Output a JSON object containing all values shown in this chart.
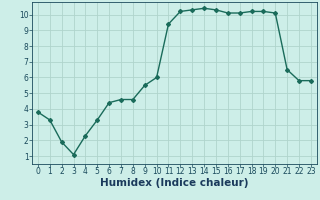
{
  "x": [
    0,
    1,
    2,
    3,
    4,
    5,
    6,
    7,
    8,
    9,
    10,
    11,
    12,
    13,
    14,
    15,
    16,
    17,
    18,
    19,
    20,
    21,
    22,
    23
  ],
  "y": [
    3.8,
    3.3,
    1.9,
    1.1,
    2.3,
    3.3,
    4.4,
    4.6,
    4.6,
    5.5,
    6.0,
    9.4,
    10.2,
    10.3,
    10.4,
    10.3,
    10.1,
    10.1,
    10.2,
    10.2,
    10.1,
    6.5,
    5.8,
    5.8
  ],
  "line_color": "#1a6b5a",
  "marker": "D",
  "marker_size": 2.0,
  "linewidth": 1.0,
  "bg_color": "#cdeee8",
  "grid_color": "#b0d4cc",
  "xlabel": "Humidex (Indice chaleur)",
  "xlabel_color": "#1a3a5c",
  "xlim": [
    -0.5,
    23.5
  ],
  "ylim": [
    0.5,
    10.8
  ],
  "yticks": [
    1,
    2,
    3,
    4,
    5,
    6,
    7,
    8,
    9,
    10
  ],
  "xticks": [
    0,
    1,
    2,
    3,
    4,
    5,
    6,
    7,
    8,
    9,
    10,
    11,
    12,
    13,
    14,
    15,
    16,
    17,
    18,
    19,
    20,
    21,
    22,
    23
  ],
  "tick_color": "#1a4a5c",
  "tick_fontsize": 5.5,
  "xlabel_fontsize": 7.5,
  "xlabel_fontweight": "bold"
}
